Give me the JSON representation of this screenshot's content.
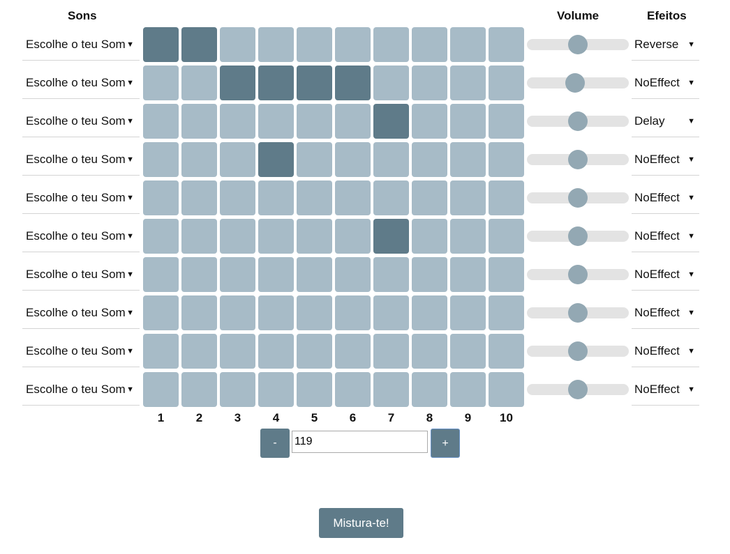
{
  "headers": {
    "sons": "Sons",
    "volume": "Volume",
    "efeitos": "Efeitos"
  },
  "tracks": [
    {
      "sound": "Escolhe o teu Som",
      "steps": [
        1,
        1,
        0,
        0,
        0,
        0,
        0,
        0,
        0,
        0
      ],
      "volume": 0.5,
      "effect": "Reverse"
    },
    {
      "sound": "Escolhe o teu Som",
      "steps": [
        0,
        0,
        1,
        1,
        1,
        1,
        0,
        0,
        0,
        0
      ],
      "volume": 0.47,
      "effect": "NoEffect"
    },
    {
      "sound": "Escolhe o teu Som",
      "steps": [
        0,
        0,
        0,
        0,
        0,
        0,
        1,
        0,
        0,
        0
      ],
      "volume": 0.5,
      "effect": "Delay"
    },
    {
      "sound": "Escolhe o teu Som",
      "steps": [
        0,
        0,
        0,
        1,
        0,
        0,
        0,
        0,
        0,
        0
      ],
      "volume": 0.5,
      "effect": "NoEffect"
    },
    {
      "sound": "Escolhe o teu Som",
      "steps": [
        0,
        0,
        0,
        0,
        0,
        0,
        0,
        0,
        0,
        0
      ],
      "volume": 0.5,
      "effect": "NoEffect"
    },
    {
      "sound": "Escolhe o teu Som",
      "steps": [
        0,
        0,
        0,
        0,
        0,
        0,
        1,
        0,
        0,
        0
      ],
      "volume": 0.5,
      "effect": "NoEffect"
    },
    {
      "sound": "Escolhe o teu Som",
      "steps": [
        0,
        0,
        0,
        0,
        0,
        0,
        0,
        0,
        0,
        0
      ],
      "volume": 0.5,
      "effect": "NoEffect"
    },
    {
      "sound": "Escolhe o teu Som",
      "steps": [
        0,
        0,
        0,
        0,
        0,
        0,
        0,
        0,
        0,
        0
      ],
      "volume": 0.5,
      "effect": "NoEffect"
    },
    {
      "sound": "Escolhe o teu Som",
      "steps": [
        0,
        0,
        0,
        0,
        0,
        0,
        0,
        0,
        0,
        0
      ],
      "volume": 0.5,
      "effect": "NoEffect"
    },
    {
      "sound": "Escolhe o teu Som",
      "steps": [
        0,
        0,
        0,
        0,
        0,
        0,
        0,
        0,
        0,
        0
      ],
      "volume": 0.5,
      "effect": "NoEffect"
    }
  ],
  "columns": [
    "1",
    "2",
    "3",
    "4",
    "5",
    "6",
    "7",
    "8",
    "9",
    "10"
  ],
  "tempo": {
    "minus_label": "-",
    "value": "119",
    "plus_label": "+"
  },
  "mix_button": "Mistura-te!",
  "dropdown_arrow": "▼",
  "colors": {
    "step_on": "#5f7b89",
    "step_off": "#a7bbc7",
    "slider_thumb": "#93a8b3",
    "slider_track": "#e3e3e3"
  }
}
